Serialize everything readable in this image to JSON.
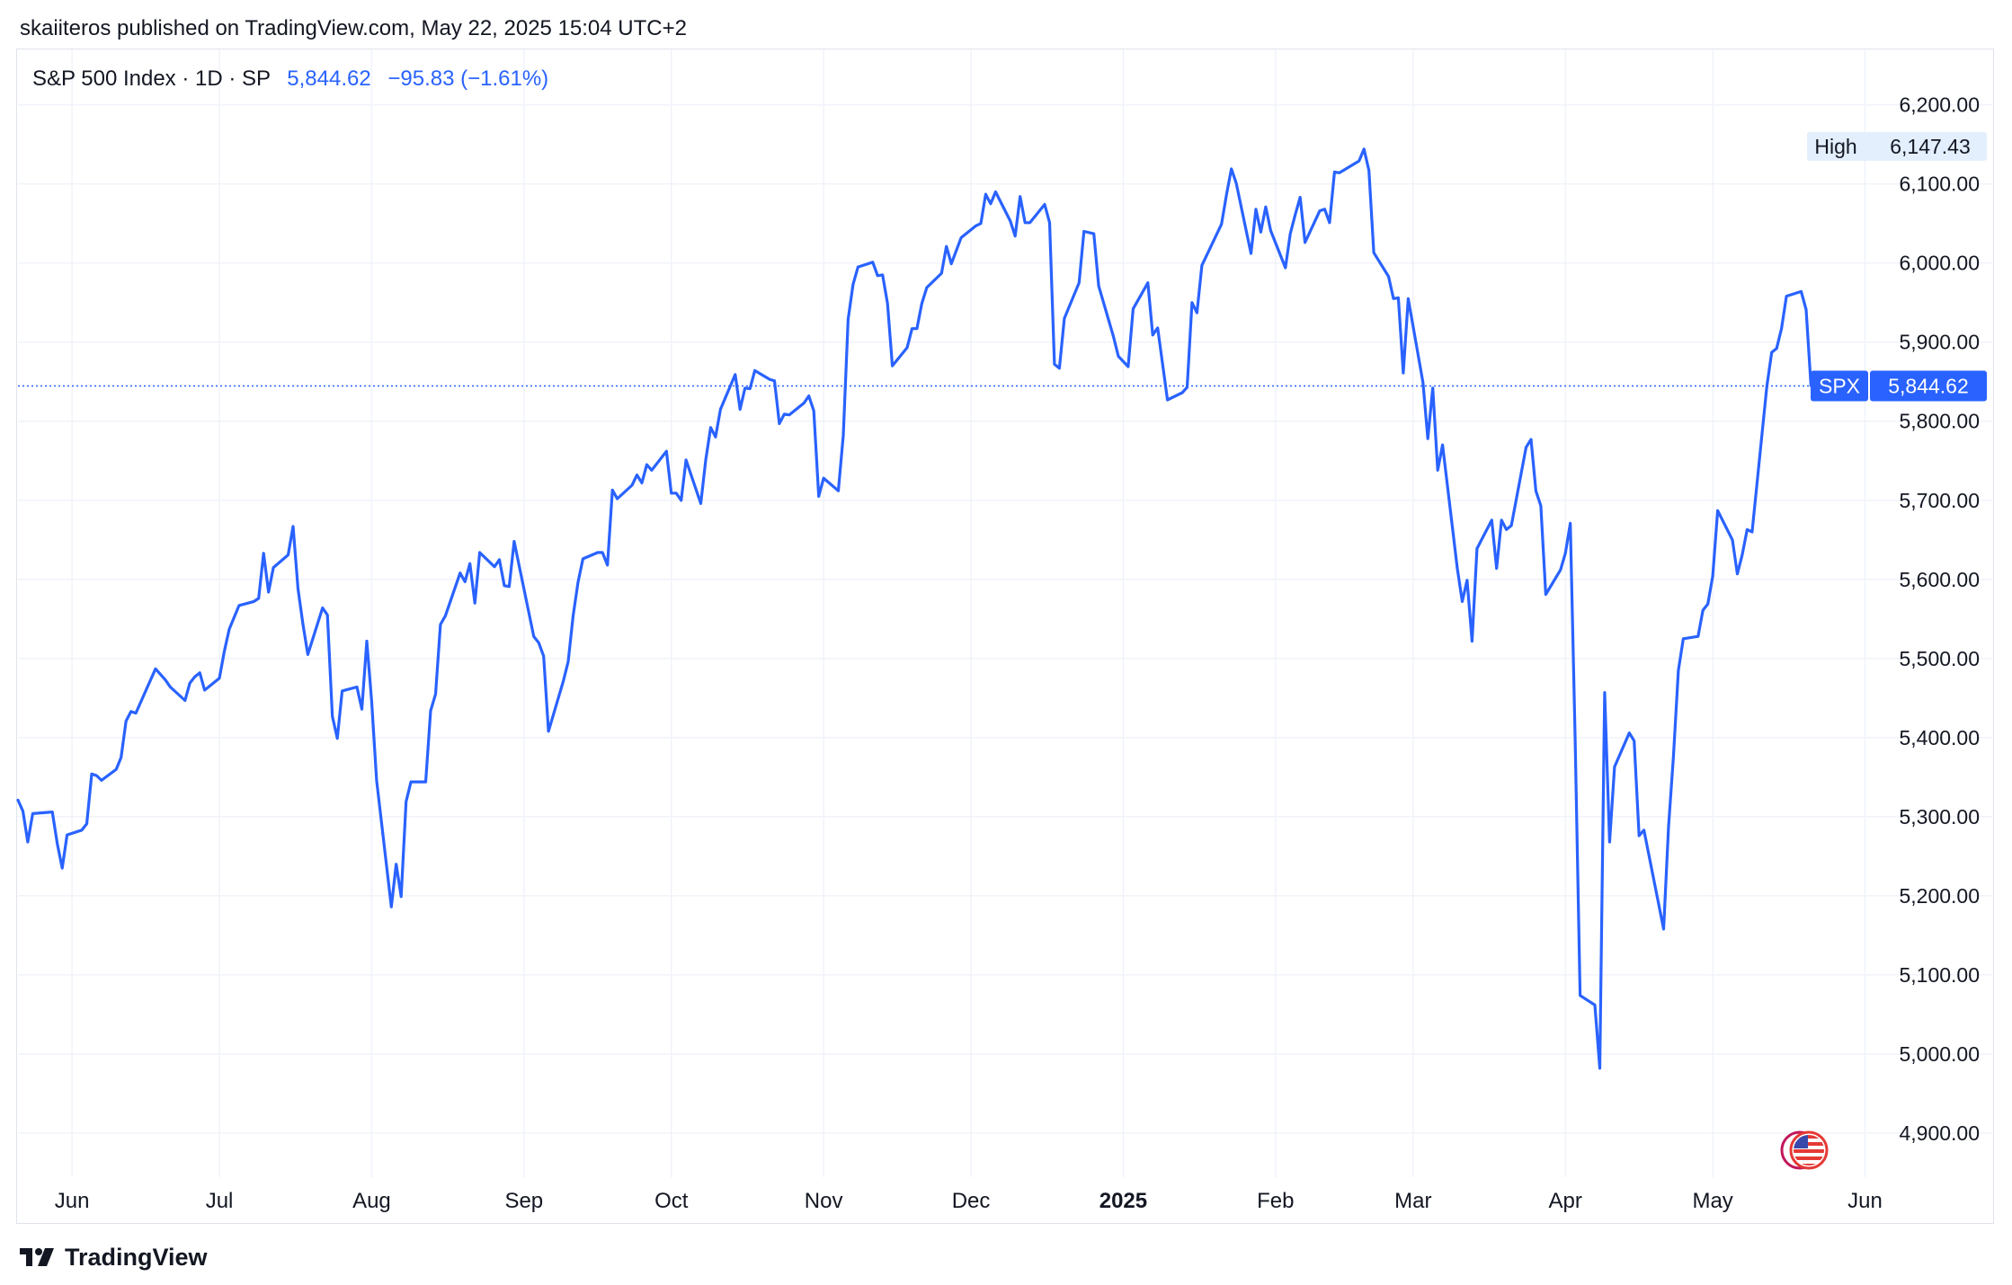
{
  "header": {
    "publisher_line": "skaiiteros published on TradingView.com, May 22, 2025 15:04 UTC+2"
  },
  "legend": {
    "symbol_line": "S&P 500 Index · 1D · SP",
    "price": "5,844.62",
    "change": "−95.83 (−1.61%)"
  },
  "badges": {
    "high_label": "High",
    "high_value": "6,147.43",
    "last_symbol": "SPX",
    "last_value": "5,844.62"
  },
  "brand": {
    "name": "TradingView"
  },
  "colors": {
    "line": "#2962ff",
    "grid": "#f0f3fa",
    "axis_text": "#131722",
    "badge_bg": "#2962ff",
    "high_badge_bg": "#e3effd"
  },
  "icons": {
    "flag": "us-flag-icon",
    "logo": "tradingview-logo-icon"
  },
  "chart_data": {
    "type": "line",
    "title": "S&P 500 Index · 1D · SP",
    "xlabel": "",
    "ylabel": "",
    "ylim": [
      4850,
      6270
    ],
    "y_ticks": [
      "6,200.00",
      "6,100.00",
      "6,000.00",
      "5,900.00",
      "5,800.00",
      "5,700.00",
      "5,600.00",
      "5,500.00",
      "5,400.00",
      "5,300.00",
      "5,200.00",
      "5,100.00",
      "5,000.00",
      "4,900.00"
    ],
    "x_ticks": [
      "Jun",
      "Jul",
      "Aug",
      "Sep",
      "Oct",
      "Nov",
      "Dec",
      "2025",
      "Feb",
      "Mar",
      "Apr",
      "May",
      "Jun"
    ],
    "x_tick_dates": [
      "2024-06-01",
      "2024-07-01",
      "2024-08-01",
      "2024-09-01",
      "2024-10-01",
      "2024-11-01",
      "2024-12-01",
      "2025-01-01",
      "2025-02-01",
      "2025-03-01",
      "2025-04-01",
      "2025-05-01",
      "2025-06-01"
    ],
    "xlim": [
      "2024-05-21",
      "2025-06-02"
    ],
    "grid": true,
    "reference_lines": {
      "last_price": 5844.62,
      "high": 6147.43
    },
    "series": [
      {
        "points": [
          [
            "2024-05-21",
            5321
          ],
          [
            "2024-05-22",
            5307
          ],
          [
            "2024-05-23",
            5268
          ],
          [
            "2024-05-24",
            5304
          ],
          [
            "2024-05-28",
            5306
          ],
          [
            "2024-05-29",
            5266
          ],
          [
            "2024-05-30",
            5235
          ],
          [
            "2024-05-31",
            5277
          ],
          [
            "2024-06-03",
            5283
          ],
          [
            "2024-06-04",
            5291
          ],
          [
            "2024-06-05",
            5354
          ],
          [
            "2024-06-06",
            5352
          ],
          [
            "2024-06-07",
            5346
          ],
          [
            "2024-06-10",
            5360
          ],
          [
            "2024-06-11",
            5375
          ],
          [
            "2024-06-12",
            5421
          ],
          [
            "2024-06-13",
            5433
          ],
          [
            "2024-06-14",
            5431
          ],
          [
            "2024-06-17",
            5473
          ],
          [
            "2024-06-18",
            5487
          ],
          [
            "2024-06-20",
            5473
          ],
          [
            "2024-06-21",
            5464
          ],
          [
            "2024-06-24",
            5447
          ],
          [
            "2024-06-25",
            5469
          ],
          [
            "2024-06-26",
            5477
          ],
          [
            "2024-06-27",
            5482
          ],
          [
            "2024-06-28",
            5460
          ],
          [
            "2024-07-01",
            5475
          ],
          [
            "2024-07-02",
            5509
          ],
          [
            "2024-07-03",
            5537
          ],
          [
            "2024-07-05",
            5567
          ],
          [
            "2024-07-08",
            5572
          ],
          [
            "2024-07-09",
            5576
          ],
          [
            "2024-07-10",
            5633
          ],
          [
            "2024-07-11",
            5584
          ],
          [
            "2024-07-12",
            5615
          ],
          [
            "2024-07-15",
            5631
          ],
          [
            "2024-07-16",
            5667
          ],
          [
            "2024-07-17",
            5588
          ],
          [
            "2024-07-18",
            5544
          ],
          [
            "2024-07-19",
            5505
          ],
          [
            "2024-07-22",
            5564
          ],
          [
            "2024-07-23",
            5555
          ],
          [
            "2024-07-24",
            5427
          ],
          [
            "2024-07-25",
            5399
          ],
          [
            "2024-07-26",
            5459
          ],
          [
            "2024-07-29",
            5464
          ],
          [
            "2024-07-30",
            5436
          ],
          [
            "2024-07-31",
            5522
          ],
          [
            "2024-08-01",
            5446
          ],
          [
            "2024-08-02",
            5346
          ],
          [
            "2024-08-05",
            5186
          ],
          [
            "2024-08-06",
            5240
          ],
          [
            "2024-08-07",
            5199
          ],
          [
            "2024-08-08",
            5319
          ],
          [
            "2024-08-09",
            5344
          ],
          [
            "2024-08-12",
            5344
          ],
          [
            "2024-08-13",
            5434
          ],
          [
            "2024-08-14",
            5455
          ],
          [
            "2024-08-15",
            5543
          ],
          [
            "2024-08-16",
            5554
          ],
          [
            "2024-08-19",
            5608
          ],
          [
            "2024-08-20",
            5597
          ],
          [
            "2024-08-21",
            5620
          ],
          [
            "2024-08-22",
            5570
          ],
          [
            "2024-08-23",
            5634
          ],
          [
            "2024-08-26",
            5616
          ],
          [
            "2024-08-27",
            5625
          ],
          [
            "2024-08-28",
            5592
          ],
          [
            "2024-08-29",
            5591
          ],
          [
            "2024-08-30",
            5648
          ],
          [
            "2024-09-03",
            5528
          ],
          [
            "2024-09-04",
            5520
          ],
          [
            "2024-09-05",
            5503
          ],
          [
            "2024-09-06",
            5408
          ],
          [
            "2024-09-09",
            5471
          ],
          [
            "2024-09-10",
            5496
          ],
          [
            "2024-09-11",
            5554
          ],
          [
            "2024-09-12",
            5596
          ],
          [
            "2024-09-13",
            5626
          ],
          [
            "2024-09-16",
            5634
          ],
          [
            "2024-09-17",
            5634
          ],
          [
            "2024-09-18",
            5618
          ],
          [
            "2024-09-19",
            5713
          ],
          [
            "2024-09-20",
            5702
          ],
          [
            "2024-09-23",
            5719
          ],
          [
            "2024-09-24",
            5732
          ],
          [
            "2024-09-25",
            5722
          ],
          [
            "2024-09-26",
            5745
          ],
          [
            "2024-09-27",
            5738
          ],
          [
            "2024-09-30",
            5762
          ],
          [
            "2024-10-01",
            5709
          ],
          [
            "2024-10-02",
            5709
          ],
          [
            "2024-10-03",
            5700
          ],
          [
            "2024-10-04",
            5751
          ],
          [
            "2024-10-07",
            5696
          ],
          [
            "2024-10-08",
            5751
          ],
          [
            "2024-10-09",
            5792
          ],
          [
            "2024-10-10",
            5780
          ],
          [
            "2024-10-11",
            5815
          ],
          [
            "2024-10-14",
            5859
          ],
          [
            "2024-10-15",
            5815
          ],
          [
            "2024-10-16",
            5842
          ],
          [
            "2024-10-17",
            5841
          ],
          [
            "2024-10-18",
            5864
          ],
          [
            "2024-10-21",
            5853
          ],
          [
            "2024-10-22",
            5851
          ],
          [
            "2024-10-23",
            5797
          ],
          [
            "2024-10-24",
            5809
          ],
          [
            "2024-10-25",
            5808
          ],
          [
            "2024-10-28",
            5823
          ],
          [
            "2024-10-29",
            5832
          ],
          [
            "2024-10-30",
            5813
          ],
          [
            "2024-10-31",
            5705
          ],
          [
            "2024-11-01",
            5728
          ],
          [
            "2024-11-04",
            5712
          ],
          [
            "2024-11-05",
            5782
          ],
          [
            "2024-11-06",
            5929
          ],
          [
            "2024-11-07",
            5973
          ],
          [
            "2024-11-08",
            5995
          ],
          [
            "2024-11-11",
            6001
          ],
          [
            "2024-11-12",
            5984
          ],
          [
            "2024-11-13",
            5985
          ],
          [
            "2024-11-14",
            5949
          ],
          [
            "2024-11-15",
            5870
          ],
          [
            "2024-11-18",
            5893
          ],
          [
            "2024-11-19",
            5917
          ],
          [
            "2024-11-20",
            5917
          ],
          [
            "2024-11-21",
            5949
          ],
          [
            "2024-11-22",
            5969
          ],
          [
            "2024-11-25",
            5987
          ],
          [
            "2024-11-26",
            6021
          ],
          [
            "2024-11-27",
            5999
          ],
          [
            "2024-11-29",
            6032
          ],
          [
            "2024-12-02",
            6047
          ],
          [
            "2024-12-03",
            6050
          ],
          [
            "2024-12-04",
            6087
          ],
          [
            "2024-12-05",
            6075
          ],
          [
            "2024-12-06",
            6090
          ],
          [
            "2024-12-09",
            6053
          ],
          [
            "2024-12-10",
            6034
          ],
          [
            "2024-12-11",
            6084
          ],
          [
            "2024-12-12",
            6051
          ],
          [
            "2024-12-13",
            6051
          ],
          [
            "2024-12-16",
            6074
          ],
          [
            "2024-12-17",
            6051
          ],
          [
            "2024-12-18",
            5872
          ],
          [
            "2024-12-19",
            5867
          ],
          [
            "2024-12-20",
            5930
          ],
          [
            "2024-12-23",
            5975
          ],
          [
            "2024-12-24",
            6040
          ],
          [
            "2024-12-26",
            6037
          ],
          [
            "2024-12-27",
            5971
          ],
          [
            "2024-12-30",
            5907
          ],
          [
            "2024-12-31",
            5882
          ],
          [
            "2025-01-02",
            5869
          ],
          [
            "2025-01-03",
            5942
          ],
          [
            "2025-01-06",
            5975
          ],
          [
            "2025-01-07",
            5909
          ],
          [
            "2025-01-08",
            5918
          ],
          [
            "2025-01-10",
            5827
          ],
          [
            "2025-01-13",
            5836
          ],
          [
            "2025-01-14",
            5843
          ],
          [
            "2025-01-15",
            5950
          ],
          [
            "2025-01-16",
            5937
          ],
          [
            "2025-01-17",
            5997
          ],
          [
            "2025-01-21",
            6049
          ],
          [
            "2025-01-22",
            6086
          ],
          [
            "2025-01-23",
            6119
          ],
          [
            "2025-01-24",
            6101
          ],
          [
            "2025-01-27",
            6012
          ],
          [
            "2025-01-28",
            6068
          ],
          [
            "2025-01-29",
            6039
          ],
          [
            "2025-01-30",
            6071
          ],
          [
            "2025-01-31",
            6041
          ],
          [
            "2025-02-03",
            5994
          ],
          [
            "2025-02-04",
            6037
          ],
          [
            "2025-02-05",
            6061
          ],
          [
            "2025-02-06",
            6083
          ],
          [
            "2025-02-07",
            6026
          ],
          [
            "2025-02-10",
            6066
          ],
          [
            "2025-02-11",
            6068
          ],
          [
            "2025-02-12",
            6051
          ],
          [
            "2025-02-13",
            6115
          ],
          [
            "2025-02-14",
            6114
          ],
          [
            "2025-02-18",
            6129
          ],
          [
            "2025-02-19",
            6144
          ],
          [
            "2025-02-20",
            6117
          ],
          [
            "2025-02-21",
            6013
          ],
          [
            "2025-02-24",
            5983
          ],
          [
            "2025-02-25",
            5955
          ],
          [
            "2025-02-26",
            5956
          ],
          [
            "2025-02-27",
            5861
          ],
          [
            "2025-02-28",
            5955
          ],
          [
            "2025-03-03",
            5849
          ],
          [
            "2025-03-04",
            5778
          ],
          [
            "2025-03-05",
            5842
          ],
          [
            "2025-03-06",
            5738
          ],
          [
            "2025-03-07",
            5770
          ],
          [
            "2025-03-10",
            5614
          ],
          [
            "2025-03-11",
            5572
          ],
          [
            "2025-03-12",
            5599
          ],
          [
            "2025-03-13",
            5522
          ],
          [
            "2025-03-14",
            5639
          ],
          [
            "2025-03-17",
            5675
          ],
          [
            "2025-03-18",
            5614
          ],
          [
            "2025-03-19",
            5675
          ],
          [
            "2025-03-20",
            5663
          ],
          [
            "2025-03-21",
            5668
          ],
          [
            "2025-03-24",
            5767
          ],
          [
            "2025-03-25",
            5777
          ],
          [
            "2025-03-26",
            5712
          ],
          [
            "2025-03-27",
            5693
          ],
          [
            "2025-03-28",
            5581
          ],
          [
            "2025-03-31",
            5612
          ],
          [
            "2025-04-01",
            5633
          ],
          [
            "2025-04-02",
            5671
          ],
          [
            "2025-04-03",
            5397
          ],
          [
            "2025-04-04",
            5074
          ],
          [
            "2025-04-07",
            5062
          ],
          [
            "2025-04-08",
            4982
          ],
          [
            "2025-04-09",
            5457
          ],
          [
            "2025-04-10",
            5268
          ],
          [
            "2025-04-11",
            5363
          ],
          [
            "2025-04-14",
            5406
          ],
          [
            "2025-04-15",
            5396
          ],
          [
            "2025-04-16",
            5276
          ],
          [
            "2025-04-17",
            5283
          ],
          [
            "2025-04-21",
            5158
          ],
          [
            "2025-04-22",
            5288
          ],
          [
            "2025-04-23",
            5376
          ],
          [
            "2025-04-24",
            5485
          ],
          [
            "2025-04-25",
            5525
          ],
          [
            "2025-04-28",
            5528
          ],
          [
            "2025-04-29",
            5561
          ],
          [
            "2025-04-30",
            5569
          ],
          [
            "2025-05-01",
            5604
          ],
          [
            "2025-05-02",
            5687
          ],
          [
            "2025-05-05",
            5650
          ],
          [
            "2025-05-06",
            5607
          ],
          [
            "2025-05-07",
            5631
          ],
          [
            "2025-05-08",
            5663
          ],
          [
            "2025-05-09",
            5660
          ],
          [
            "2025-05-12",
            5844
          ],
          [
            "2025-05-13",
            5887
          ],
          [
            "2025-05-14",
            5892
          ],
          [
            "2025-05-15",
            5917
          ],
          [
            "2025-05-16",
            5958
          ],
          [
            "2025-05-19",
            5964
          ],
          [
            "2025-05-20",
            5941
          ],
          [
            "2025-05-21",
            5845
          ]
        ]
      }
    ]
  }
}
